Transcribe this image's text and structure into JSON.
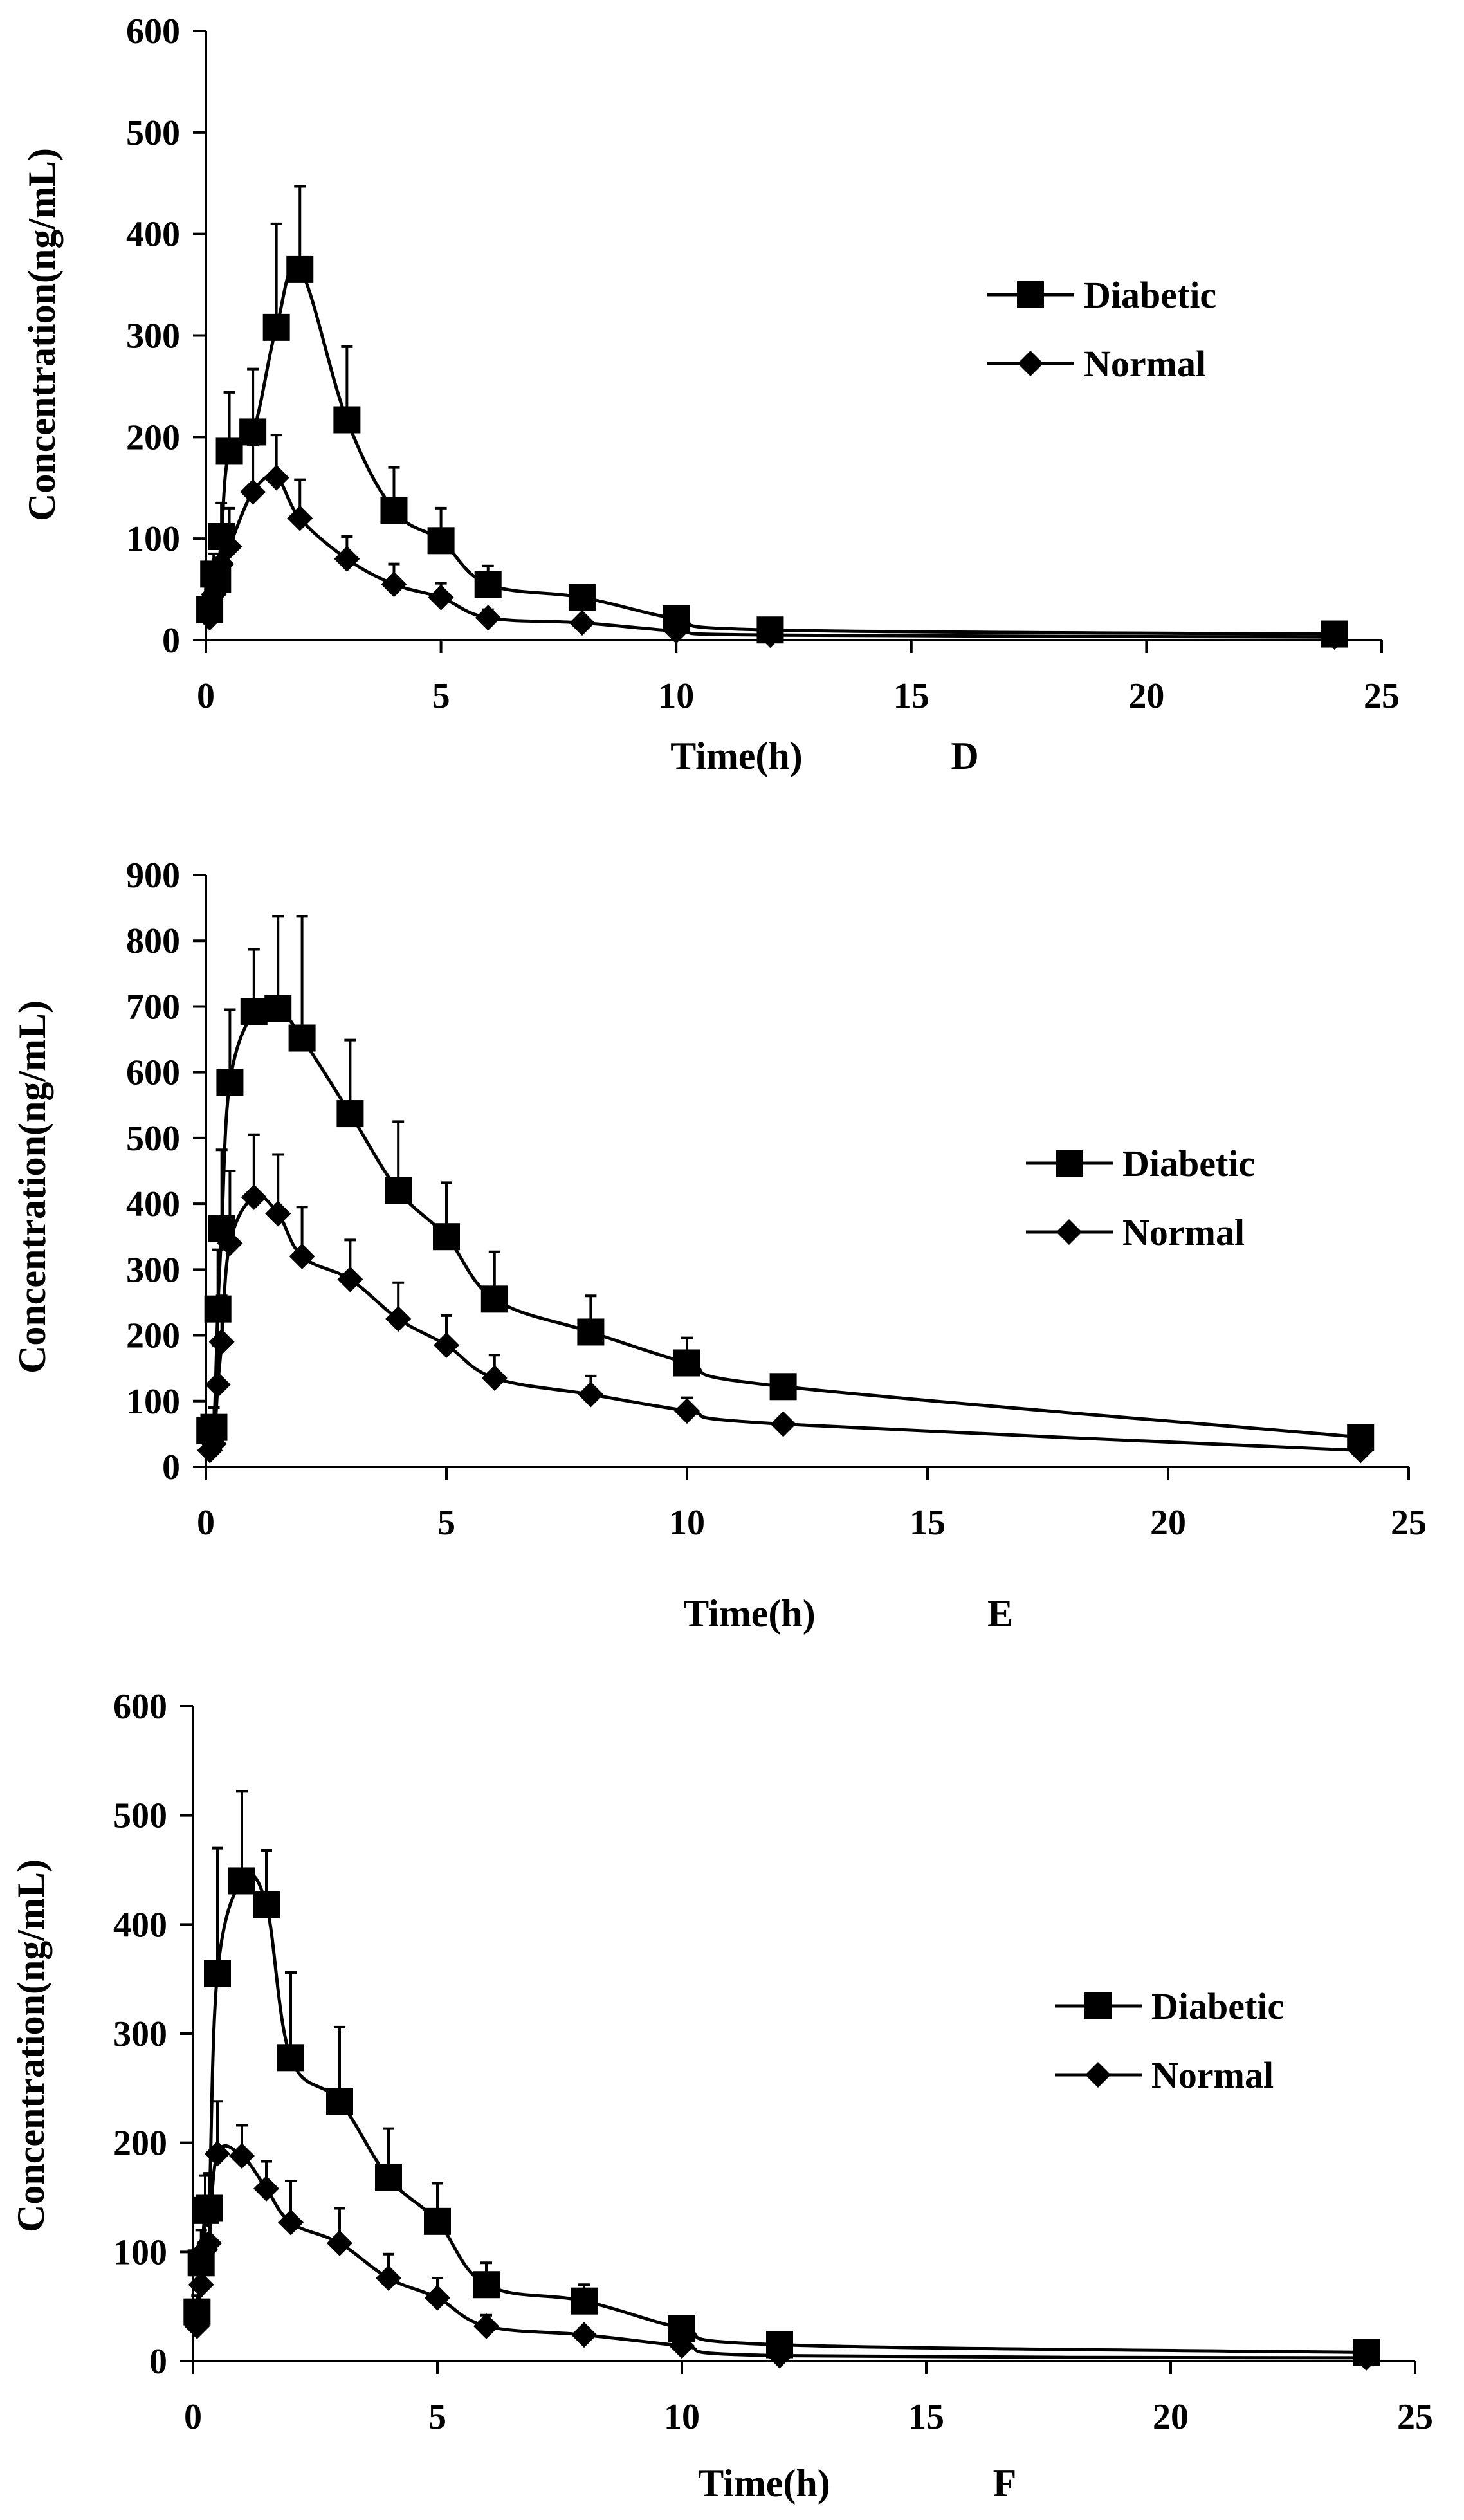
{
  "chart_data": [
    {
      "type": "line",
      "panel_label": "D",
      "xlabel": "Time(h)",
      "ylabel": "Concentration(ng/mL)",
      "xlim": [
        0,
        25
      ],
      "ylim": [
        0,
        600
      ],
      "xticks": [
        0,
        5,
        10,
        15,
        20,
        25
      ],
      "yticks": [
        0,
        100,
        200,
        300,
        400,
        500,
        600
      ],
      "grid": false,
      "legend_position": "right",
      "x": [
        0.083,
        0.167,
        0.25,
        0.33,
        0.5,
        1,
        1.5,
        2,
        3,
        4,
        5,
        6,
        8,
        10,
        12,
        24
      ],
      "series": [
        {
          "name": "Diabetic",
          "marker": "square",
          "values": [
            30,
            65,
            60,
            102,
            186,
            205,
            308,
            365,
            217,
            128,
            98,
            55,
            42,
            21,
            10,
            6
          ],
          "errors": [
            12,
            20,
            20,
            33,
            58,
            62,
            102,
            82,
            72,
            42,
            32,
            18,
            12,
            8,
            3,
            2
          ]
        },
        {
          "name": "Normal",
          "marker": "diamond",
          "values": [
            22,
            45,
            50,
            75,
            92,
            146,
            160,
            120,
            80,
            55,
            42,
            22,
            17,
            9,
            5,
            3
          ],
          "errors": [
            8,
            12,
            15,
            22,
            38,
            46,
            42,
            38,
            22,
            20,
            14,
            8,
            5,
            3,
            2,
            1
          ]
        }
      ]
    },
    {
      "type": "line",
      "panel_label": "E",
      "xlabel": "Time(h)",
      "ylabel": "Concentration(ng/mL)",
      "xlim": [
        0,
        25
      ],
      "ylim": [
        0,
        900
      ],
      "xticks": [
        0,
        5,
        10,
        15,
        20,
        25
      ],
      "yticks": [
        0,
        100,
        200,
        300,
        400,
        500,
        600,
        700,
        800,
        900
      ],
      "grid": false,
      "legend_position": "right",
      "x": [
        0.083,
        0.167,
        0.25,
        0.33,
        0.5,
        1,
        1.5,
        2,
        3,
        4,
        5,
        6,
        8,
        10,
        12,
        24
      ],
      "series": [
        {
          "name": "Diabetic",
          "marker": "square",
          "values": [
            55,
            60,
            240,
            362,
            585,
            692,
            697,
            652,
            537,
            420,
            350,
            255,
            205,
            158,
            122,
            45
          ],
          "errors": [
            20,
            30,
            90,
            120,
            110,
            95,
            140,
            185,
            112,
            105,
            82,
            72,
            55,
            38,
            8,
            5
          ]
        },
        {
          "name": "Normal",
          "marker": "diamond",
          "values": [
            25,
            35,
            125,
            190,
            340,
            410,
            385,
            320,
            285,
            225,
            185,
            135,
            110,
            85,
            65,
            25
          ],
          "errors": [
            8,
            10,
            60,
            70,
            110,
            95,
            90,
            75,
            60,
            55,
            45,
            35,
            28,
            20,
            5,
            3
          ]
        }
      ]
    },
    {
      "type": "line",
      "panel_label": "F",
      "xlabel": "Time(h)",
      "ylabel": "Concentration(ng/mL)",
      "xlim": [
        0,
        25
      ],
      "ylim": [
        0,
        600
      ],
      "xticks": [
        0,
        5,
        10,
        15,
        20,
        25
      ],
      "yticks": [
        0,
        100,
        200,
        300,
        400,
        500,
        600
      ],
      "grid": false,
      "legend_position": "right",
      "x": [
        0.083,
        0.167,
        0.25,
        0.33,
        0.5,
        1,
        1.5,
        2,
        3,
        4,
        5,
        6,
        8,
        10,
        12,
        24
      ],
      "series": [
        {
          "name": "Diabetic",
          "marker": "square",
          "values": [
            45,
            90,
            138,
            140,
            355,
            440,
            418,
            278,
            238,
            168,
            128,
            70,
            55,
            30,
            15,
            8
          ],
          "errors": [
            15,
            30,
            32,
            32,
            115,
            82,
            50,
            78,
            68,
            45,
            35,
            20,
            15,
            8,
            3,
            2
          ]
        },
        {
          "name": "Normal",
          "marker": "diamond",
          "values": [
            32,
            70,
            102,
            108,
            190,
            188,
            158,
            127,
            108,
            76,
            58,
            32,
            24,
            14,
            5,
            3
          ],
          "errors": [
            10,
            20,
            25,
            25,
            48,
            28,
            25,
            38,
            32,
            22,
            18,
            10,
            6,
            4,
            2,
            1
          ]
        }
      ]
    }
  ]
}
